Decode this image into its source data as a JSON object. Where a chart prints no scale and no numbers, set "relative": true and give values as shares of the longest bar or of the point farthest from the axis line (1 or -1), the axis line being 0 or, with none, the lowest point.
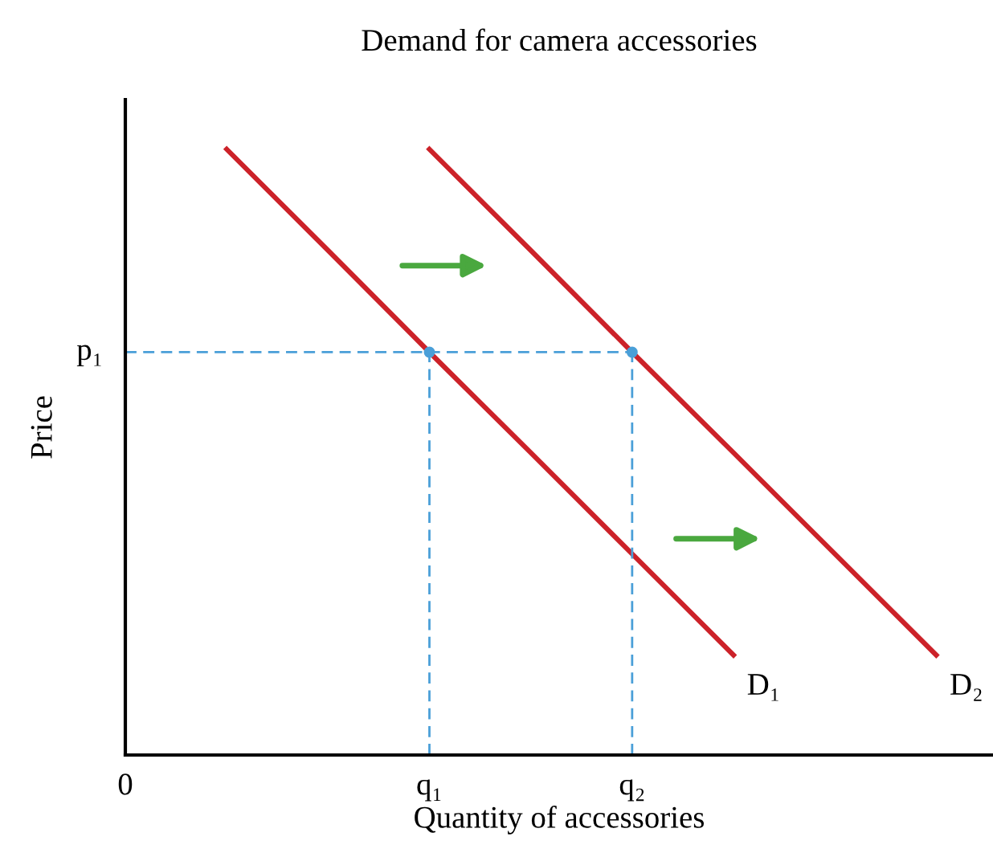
{
  "chart_data": {
    "type": "line",
    "title": "Demand for camera accessories",
    "xlabel": "Quantity of accessories",
    "ylabel": "Price",
    "relative": true,
    "marker": "none",
    "categories": [
      "0",
      null,
      null,
      "q₁",
      null,
      "q₂",
      null,
      null,
      null
    ],
    "annotations": [
      "p₁"
    ],
    "series": [
      {
        "name": "D₁",
        "color": "#cc2229",
        "values": [
          null,
          1,
          0.833,
          0.665,
          0.499,
          0.332,
          0.165,
          null,
          null
        ],
        "line_style": "solid"
      },
      {
        "name": "D₂",
        "color": "#cc2229",
        "values": [
          null,
          null,
          null,
          1,
          0.833,
          0.665,
          0.499,
          0.332,
          0.165
        ],
        "line_style": "solid"
      },
      {
        "color": "#4a9fd8",
        "values": [
          0.665,
          0.665,
          0.665,
          0.665,
          0.665,
          0.665,
          null,
          null,
          null
        ],
        "line_style": "dashed"
      },
      {
        "type": "lollipop",
        "color": "#4a9fd8",
        "values": [
          null,
          null,
          null,
          0.665,
          null,
          0.665,
          null,
          null,
          null
        ],
        "line_style": "dashed",
        "marker": "circle"
      }
    ]
  }
}
